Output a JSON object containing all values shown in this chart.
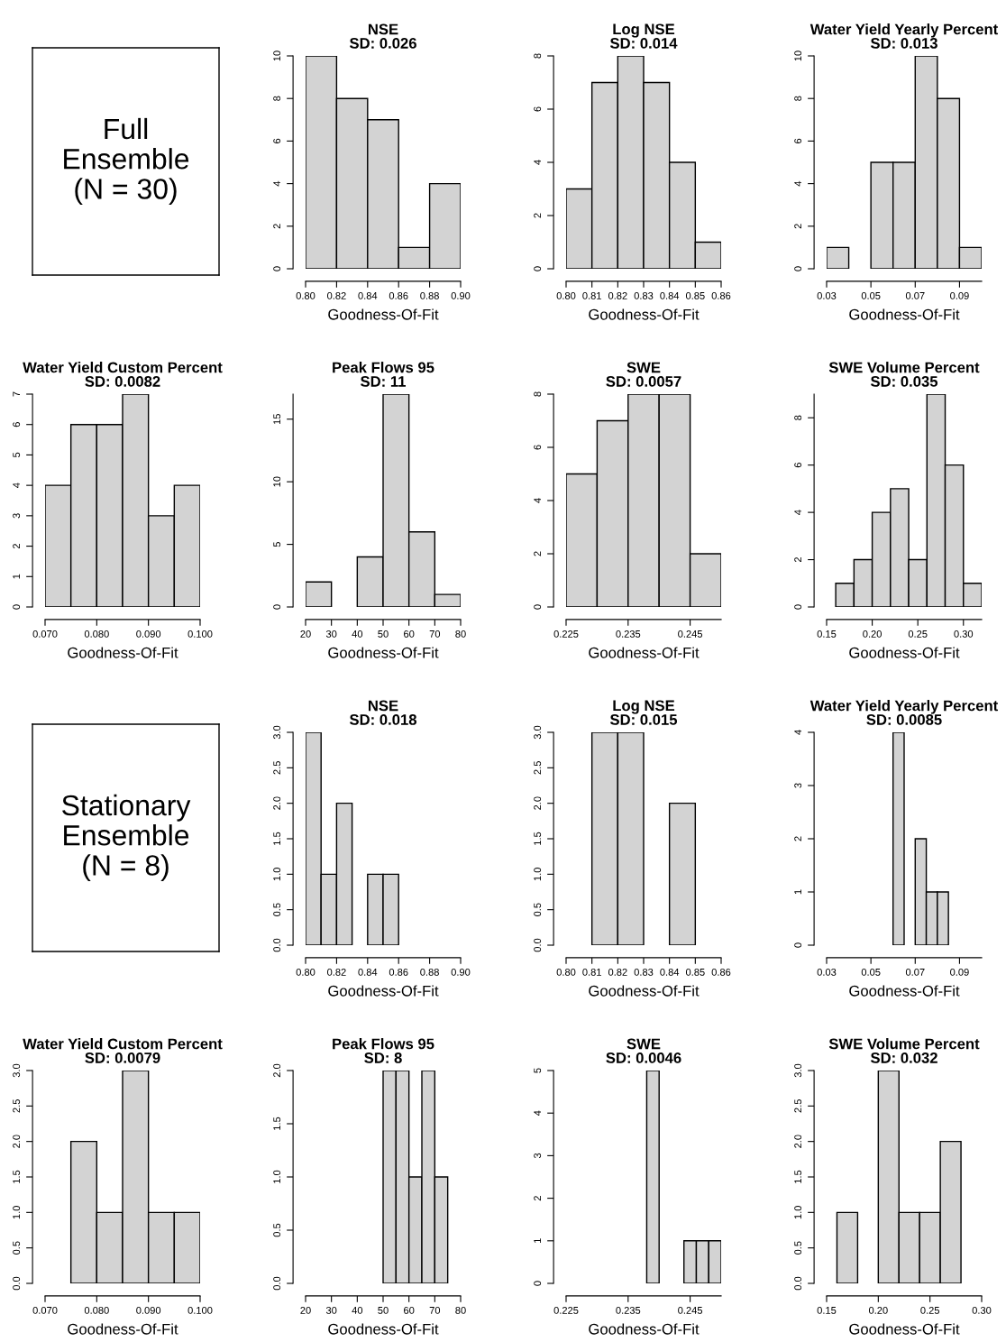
{
  "chart_data": [
    {
      "type": "other",
      "annotations": [
        "Full\nEnsemble\n(N = 30)"
      ]
    },
    {
      "type": "histogram",
      "title": "NSE",
      "subtitle": "SD: 0.026",
      "xlabel": "Goodness-Of-Fit",
      "color": "#d3d3d3",
      "bins": [
        0.8,
        0.82,
        0.84,
        0.86,
        0.88,
        0.9
      ],
      "values": [
        10,
        8,
        7,
        1,
        4
      ],
      "xlim": [
        0.8,
        0.9
      ],
      "ylim": [
        0,
        10
      ],
      "xticks": [
        {
          "value": 0.8,
          "label": "0.80"
        },
        {
          "value": 0.82,
          "label": "0.82"
        },
        {
          "value": 0.84,
          "label": "0.84"
        },
        {
          "value": 0.86,
          "label": "0.86"
        },
        {
          "value": 0.88,
          "label": "0.88"
        },
        {
          "value": 0.9,
          "label": "0.90"
        }
      ],
      "yticks": [
        0,
        2,
        4,
        6,
        8,
        10
      ]
    },
    {
      "type": "histogram",
      "title": "Log NSE",
      "subtitle": "SD: 0.014",
      "xlabel": "Goodness-Of-Fit",
      "color": "#d3d3d3",
      "bins": [
        0.8,
        0.81,
        0.82,
        0.83,
        0.84,
        0.85,
        0.86
      ],
      "values": [
        3,
        7,
        8,
        7,
        4,
        1
      ],
      "xlim": [
        0.8,
        0.86
      ],
      "ylim": [
        0,
        8
      ],
      "xticks": [
        {
          "value": 0.8,
          "label": "0.80"
        },
        {
          "value": 0.81,
          "label": "0.81"
        },
        {
          "value": 0.82,
          "label": "0.82"
        },
        {
          "value": 0.83,
          "label": "0.83"
        },
        {
          "value": 0.84,
          "label": "0.84"
        },
        {
          "value": 0.85,
          "label": "0.85"
        },
        {
          "value": 0.86,
          "label": "0.86"
        }
      ],
      "yticks": [
        0,
        2,
        4,
        6,
        8
      ]
    },
    {
      "type": "histogram",
      "title": "Water Yield Yearly Percent",
      "subtitle": "SD: 0.013",
      "xlabel": "Goodness-Of-Fit",
      "color": "#d3d3d3",
      "bins": [
        0.03,
        0.04,
        0.05,
        0.06,
        0.07,
        0.08,
        0.09,
        0.1
      ],
      "values": [
        1,
        0,
        5,
        5,
        10,
        8,
        1
      ],
      "xlim": [
        0.03,
        0.1
      ],
      "ylim": [
        0,
        10
      ],
      "xticks": [
        {
          "value": 0.03,
          "label": "0.03"
        },
        {
          "value": 0.05,
          "label": "0.05"
        },
        {
          "value": 0.07,
          "label": "0.07"
        },
        {
          "value": 0.09,
          "label": "0.09"
        }
      ],
      "yticks": [
        0,
        2,
        4,
        6,
        8,
        10
      ]
    },
    {
      "type": "histogram",
      "title": "Water Yield Custom Percent",
      "subtitle": "SD: 0.0082",
      "xlabel": "Goodness-Of-Fit",
      "color": "#d3d3d3",
      "bins": [
        0.07,
        0.075,
        0.08,
        0.085,
        0.09,
        0.095,
        0.1
      ],
      "values": [
        4,
        6,
        6,
        7,
        3,
        4
      ],
      "xlim": [
        0.07,
        0.1
      ],
      "ylim": [
        0,
        7
      ],
      "xticks": [
        {
          "value": 0.07,
          "label": "0.070"
        },
        {
          "value": 0.08,
          "label": "0.080"
        },
        {
          "value": 0.09,
          "label": "0.090"
        },
        {
          "value": 0.1,
          "label": "0.100"
        }
      ],
      "yticks": [
        0,
        1,
        2,
        3,
        4,
        5,
        6,
        7
      ]
    },
    {
      "type": "histogram",
      "title": "Peak Flows 95",
      "subtitle": "SD: 11",
      "xlabel": "Goodness-Of-Fit",
      "color": "#d3d3d3",
      "bins": [
        20,
        30,
        40,
        50,
        60,
        70,
        80
      ],
      "values": [
        2,
        0,
        4,
        17,
        6,
        1
      ],
      "xlim": [
        20,
        80
      ],
      "ylim": [
        0,
        17
      ],
      "xticks": [
        20,
        30,
        40,
        50,
        60,
        70,
        80
      ],
      "yticks": [
        0,
        5,
        10,
        15
      ]
    },
    {
      "type": "histogram",
      "title": "SWE",
      "subtitle": "SD: 0.0057",
      "xlabel": "Goodness-Of-Fit",
      "color": "#d3d3d3",
      "bins": [
        0.225,
        0.23,
        0.235,
        0.24,
        0.245,
        0.25
      ],
      "values": [
        5,
        7,
        8,
        8,
        2
      ],
      "xlim": [
        0.225,
        0.25
      ],
      "ylim": [
        0,
        8
      ],
      "xticks": [
        {
          "value": 0.225,
          "label": "0.225"
        },
        {
          "value": 0.235,
          "label": "0.235"
        },
        {
          "value": 0.245,
          "label": "0.245"
        }
      ],
      "yticks": [
        0,
        2,
        4,
        6,
        8
      ]
    },
    {
      "type": "histogram",
      "title": "SWE Volume Percent",
      "subtitle": "SD: 0.035",
      "xlabel": "Goodness-Of-Fit",
      "color": "#d3d3d3",
      "bins": [
        0.16,
        0.18,
        0.2,
        0.22,
        0.24,
        0.26,
        0.28,
        0.3,
        0.32
      ],
      "values": [
        1,
        2,
        4,
        5,
        2,
        9,
        6,
        1
      ],
      "xlim": [
        0.15,
        0.32
      ],
      "ylim": [
        0,
        9
      ],
      "xticks": [
        {
          "value": 0.15,
          "label": "0.15"
        },
        {
          "value": 0.2,
          "label": "0.20"
        },
        {
          "value": 0.25,
          "label": "0.25"
        },
        {
          "value": 0.3,
          "label": "0.30"
        }
      ],
      "yticks": [
        0,
        2,
        4,
        6,
        8
      ]
    },
    {
      "type": "other",
      "annotations": [
        "Stationary\nEnsemble\n(N = 8)"
      ]
    },
    {
      "type": "histogram",
      "title": "NSE",
      "subtitle": "SD: 0.018",
      "xlabel": "Goodness-Of-Fit",
      "color": "#d3d3d3",
      "bins": [
        0.8,
        0.81,
        0.82,
        0.83,
        0.84,
        0.85,
        0.86
      ],
      "values": [
        3,
        1,
        2,
        0,
        1,
        1
      ],
      "xlim": [
        0.8,
        0.9
      ],
      "ylim": [
        0,
        3
      ],
      "xticks": [
        {
          "value": 0.8,
          "label": "0.80"
        },
        {
          "value": 0.82,
          "label": "0.82"
        },
        {
          "value": 0.84,
          "label": "0.84"
        },
        {
          "value": 0.86,
          "label": "0.86"
        },
        {
          "value": 0.88,
          "label": "0.88"
        },
        {
          "value": 0.9,
          "label": "0.90"
        }
      ],
      "yticks": [
        {
          "value": 0,
          "label": "0.0"
        },
        {
          "value": 0.5,
          "label": "0.5"
        },
        {
          "value": 1,
          "label": "1.0"
        },
        {
          "value": 1.5,
          "label": "1.5"
        },
        {
          "value": 2,
          "label": "2.0"
        },
        {
          "value": 2.5,
          "label": "2.5"
        },
        {
          "value": 3,
          "label": "3.0"
        }
      ]
    },
    {
      "type": "histogram",
      "title": "Log NSE",
      "subtitle": "SD: 0.015",
      "xlabel": "Goodness-Of-Fit",
      "color": "#d3d3d3",
      "bins": [
        0.81,
        0.82,
        0.83,
        0.84,
        0.85
      ],
      "values": [
        3,
        3,
        0,
        2
      ],
      "xlim": [
        0.8,
        0.86
      ],
      "ylim": [
        0,
        3
      ],
      "xticks": [
        {
          "value": 0.8,
          "label": "0.80"
        },
        {
          "value": 0.81,
          "label": "0.81"
        },
        {
          "value": 0.82,
          "label": "0.82"
        },
        {
          "value": 0.83,
          "label": "0.83"
        },
        {
          "value": 0.84,
          "label": "0.84"
        },
        {
          "value": 0.85,
          "label": "0.85"
        },
        {
          "value": 0.86,
          "label": "0.86"
        }
      ],
      "yticks": [
        {
          "value": 0,
          "label": "0.0"
        },
        {
          "value": 0.5,
          "label": "0.5"
        },
        {
          "value": 1,
          "label": "1.0"
        },
        {
          "value": 1.5,
          "label": "1.5"
        },
        {
          "value": 2,
          "label": "2.0"
        },
        {
          "value": 2.5,
          "label": "2.5"
        },
        {
          "value": 3,
          "label": "3.0"
        }
      ]
    },
    {
      "type": "histogram",
      "title": "Water Yield Yearly Percent",
      "subtitle": "SD: 0.0085",
      "xlabel": "Goodness-Of-Fit",
      "color": "#d3d3d3",
      "bins": [
        0.06,
        0.065,
        0.07,
        0.075,
        0.08,
        0.085
      ],
      "values": [
        4,
        0,
        2,
        1,
        1
      ],
      "xlim": [
        0.03,
        0.1
      ],
      "ylim": [
        0,
        4
      ],
      "xticks": [
        {
          "value": 0.03,
          "label": "0.03"
        },
        {
          "value": 0.05,
          "label": "0.05"
        },
        {
          "value": 0.07,
          "label": "0.07"
        },
        {
          "value": 0.09,
          "label": "0.09"
        }
      ],
      "yticks": [
        0,
        1,
        2,
        3,
        4
      ]
    },
    {
      "type": "histogram",
      "title": "Water Yield Custom Percent",
      "subtitle": "SD: 0.0079",
      "xlabel": "Goodness-Of-Fit",
      "color": "#d3d3d3",
      "bins": [
        0.075,
        0.08,
        0.085,
        0.09,
        0.095,
        0.1
      ],
      "values": [
        2,
        1,
        3,
        1,
        1
      ],
      "xlim": [
        0.07,
        0.1
      ],
      "ylim": [
        0,
        3
      ],
      "xticks": [
        {
          "value": 0.07,
          "label": "0.070"
        },
        {
          "value": 0.08,
          "label": "0.080"
        },
        {
          "value": 0.09,
          "label": "0.090"
        },
        {
          "value": 0.1,
          "label": "0.100"
        }
      ],
      "yticks": [
        {
          "value": 0,
          "label": "0.0"
        },
        {
          "value": 0.5,
          "label": "0.5"
        },
        {
          "value": 1,
          "label": "1.0"
        },
        {
          "value": 1.5,
          "label": "1.5"
        },
        {
          "value": 2,
          "label": "2.0"
        },
        {
          "value": 2.5,
          "label": "2.5"
        },
        {
          "value": 3,
          "label": "3.0"
        }
      ]
    },
    {
      "type": "histogram",
      "title": "Peak Flows 95",
      "subtitle": "SD: 8",
      "xlabel": "Goodness-Of-Fit",
      "color": "#d3d3d3",
      "bins": [
        50,
        55,
        60,
        65,
        70,
        75
      ],
      "values": [
        2,
        2,
        1,
        2,
        1
      ],
      "xlim": [
        20,
        80
      ],
      "ylim": [
        0,
        2
      ],
      "xticks": [
        20,
        30,
        40,
        50,
        60,
        70,
        80
      ],
      "yticks": [
        {
          "value": 0,
          "label": "0.0"
        },
        {
          "value": 0.5,
          "label": "0.5"
        },
        {
          "value": 1,
          "label": "1.0"
        },
        {
          "value": 1.5,
          "label": "1.5"
        },
        {
          "value": 2,
          "label": "2.0"
        }
      ]
    },
    {
      "type": "histogram",
      "title": "SWE",
      "subtitle": "SD: 0.0046",
      "xlabel": "Goodness-Of-Fit",
      "color": "#d3d3d3",
      "bins": [
        0.238,
        0.24,
        0.242,
        0.244,
        0.246,
        0.248,
        0.25
      ],
      "values": [
        5,
        0,
        0,
        1,
        1,
        1
      ],
      "xlim": [
        0.225,
        0.25
      ],
      "ylim": [
        0,
        5
      ],
      "xticks": [
        {
          "value": 0.225,
          "label": "0.225"
        },
        {
          "value": 0.235,
          "label": "0.235"
        },
        {
          "value": 0.245,
          "label": "0.245"
        }
      ],
      "yticks": [
        0,
        1,
        2,
        3,
        4,
        5
      ]
    },
    {
      "type": "histogram",
      "title": "SWE Volume Percent",
      "subtitle": "SD: 0.032",
      "xlabel": "Goodness-Of-Fit",
      "color": "#d3d3d3",
      "bins": [
        0.16,
        0.18,
        0.2,
        0.22,
        0.24,
        0.26,
        0.28
      ],
      "values": [
        1,
        0,
        3,
        1,
        1,
        2
      ],
      "xlim": [
        0.15,
        0.3
      ],
      "ylim": [
        0,
        3
      ],
      "xticks": [
        {
          "value": 0.15,
          "label": "0.15"
        },
        {
          "value": 0.2,
          "label": "0.20"
        },
        {
          "value": 0.25,
          "label": "0.25"
        },
        {
          "value": 0.3,
          "label": "0.30"
        }
      ],
      "yticks": [
        {
          "value": 0,
          "label": "0.0"
        },
        {
          "value": 0.5,
          "label": "0.5"
        },
        {
          "value": 1,
          "label": "1.0"
        },
        {
          "value": 1.5,
          "label": "1.5"
        },
        {
          "value": 2,
          "label": "2.0"
        },
        {
          "value": 2.5,
          "label": "2.5"
        },
        {
          "value": 3,
          "label": "3.0"
        }
      ]
    }
  ]
}
